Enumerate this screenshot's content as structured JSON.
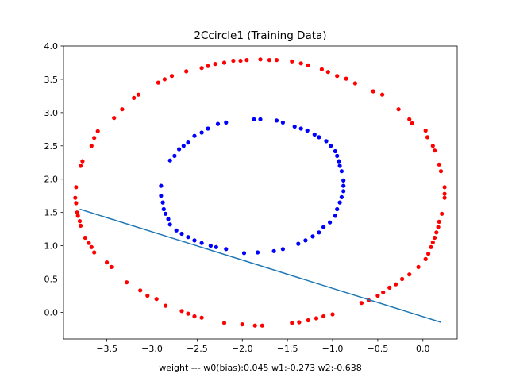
{
  "chart_data": {
    "type": "scatter",
    "title": "2Ccircle1 (Training Data)",
    "xlabel": "weight  ---  w0(bias):0.045   w1:-0.273   w2:-0.638",
    "ylabel": "",
    "xlim": [
      -3.98,
      0.38
    ],
    "ylim": [
      -0.4,
      4.0
    ],
    "xticks": [
      -3.5,
      -3.0,
      -2.5,
      -2.0,
      -1.5,
      -1.0,
      -0.5,
      0.0
    ],
    "xtick_labels": [
      "−3.5",
      "−3.0",
      "−2.5",
      "−2.0",
      "−1.5",
      "−1.0",
      "−0.5",
      "0.0"
    ],
    "yticks": [
      0.0,
      0.5,
      1.0,
      1.5,
      2.0,
      2.5,
      3.0,
      3.5,
      4.0
    ],
    "ytick_labels": [
      "0.0",
      "0.5",
      "1.0",
      "1.5",
      "2.0",
      "2.5",
      "3.0",
      "3.5",
      "4.0"
    ],
    "grid": false,
    "series": [
      {
        "color": "#ff0000",
        "marker": "circle",
        "points": [
          [
            -1.8,
            3.8
          ],
          [
            -1.7,
            3.79
          ],
          [
            -1.62,
            3.79
          ],
          [
            -1.95,
            3.79
          ],
          [
            -2.02,
            3.78
          ],
          [
            -2.1,
            3.78
          ],
          [
            -2.2,
            3.75
          ],
          [
            -2.3,
            3.73
          ],
          [
            -2.38,
            3.7
          ],
          [
            -2.45,
            3.67
          ],
          [
            -2.62,
            3.62
          ],
          [
            -2.78,
            3.55
          ],
          [
            -2.86,
            3.5
          ],
          [
            -2.93,
            3.45
          ],
          [
            -3.15,
            3.27
          ],
          [
            -3.2,
            3.22
          ],
          [
            -3.33,
            3.05
          ],
          [
            -3.42,
            2.92
          ],
          [
            -3.6,
            2.72
          ],
          [
            -3.64,
            2.62
          ],
          [
            -3.67,
            2.5
          ],
          [
            -3.77,
            2.27
          ],
          [
            -3.79,
            2.2
          ],
          [
            -3.84,
            1.88
          ],
          [
            -3.85,
            1.72
          ],
          [
            -3.84,
            1.64
          ],
          [
            -3.83,
            1.5
          ],
          [
            -3.82,
            1.45
          ],
          [
            -3.8,
            1.37
          ],
          [
            -3.79,
            1.3
          ],
          [
            -3.74,
            1.12
          ],
          [
            -3.7,
            1.04
          ],
          [
            -3.67,
            0.98
          ],
          [
            -3.64,
            0.9
          ],
          [
            -3.5,
            0.75
          ],
          [
            -3.45,
            0.68
          ],
          [
            -3.28,
            0.45
          ],
          [
            -3.13,
            0.33
          ],
          [
            -3.05,
            0.25
          ],
          [
            -2.95,
            0.2
          ],
          [
            -2.85,
            0.1
          ],
          [
            -2.67,
            0.02
          ],
          [
            -2.6,
            -0.02
          ],
          [
            -2.53,
            -0.06
          ],
          [
            -2.45,
            -0.08
          ],
          [
            -2.2,
            -0.16
          ],
          [
            -2.0,
            -0.18
          ],
          [
            -1.86,
            -0.2
          ],
          [
            -1.78,
            -0.2
          ],
          [
            -1.45,
            -0.16
          ],
          [
            -1.37,
            -0.15
          ],
          [
            -1.27,
            -0.12
          ],
          [
            -1.18,
            -0.09
          ],
          [
            -1.1,
            -0.06
          ],
          [
            -1.0,
            -0.03
          ],
          [
            -0.68,
            0.14
          ],
          [
            -0.6,
            0.18
          ],
          [
            -0.5,
            0.25
          ],
          [
            -0.44,
            0.3
          ],
          [
            -0.37,
            0.37
          ],
          [
            -0.3,
            0.42
          ],
          [
            -0.23,
            0.5
          ],
          [
            -0.15,
            0.57
          ],
          [
            -0.05,
            0.68
          ],
          [
            0.03,
            0.8
          ],
          [
            0.06,
            0.88
          ],
          [
            0.09,
            0.98
          ],
          [
            0.11,
            1.05
          ],
          [
            0.13,
            1.12
          ],
          [
            0.15,
            1.2
          ],
          [
            0.17,
            1.28
          ],
          [
            0.18,
            1.36
          ],
          [
            0.21,
            1.48
          ],
          [
            0.24,
            1.72
          ],
          [
            0.24,
            1.78
          ],
          [
            0.24,
            1.88
          ],
          [
            0.2,
            2.12
          ],
          [
            0.18,
            2.22
          ],
          [
            0.13,
            2.43
          ],
          [
            0.11,
            2.5
          ],
          [
            0.05,
            2.63
          ],
          [
            0.03,
            2.73
          ],
          [
            -0.12,
            2.84
          ],
          [
            -0.15,
            2.9
          ],
          [
            -0.27,
            3.05
          ],
          [
            -0.45,
            3.27
          ],
          [
            -0.55,
            3.32
          ],
          [
            -0.75,
            3.44
          ],
          [
            -0.85,
            3.51
          ],
          [
            -0.95,
            3.55
          ],
          [
            -1.05,
            3.61
          ],
          [
            -1.12,
            3.65
          ],
          [
            -1.27,
            3.71
          ],
          [
            -1.35,
            3.74
          ],
          [
            -1.45,
            3.77
          ]
        ]
      },
      {
        "color": "#0000ff",
        "marker": "circle",
        "points": [
          [
            -1.87,
            2.9
          ],
          [
            -1.8,
            2.9
          ],
          [
            -1.62,
            2.88
          ],
          [
            -1.55,
            2.85
          ],
          [
            -1.42,
            2.79
          ],
          [
            -1.35,
            2.76
          ],
          [
            -1.28,
            2.73
          ],
          [
            -1.2,
            2.67
          ],
          [
            -1.15,
            2.63
          ],
          [
            -1.07,
            2.57
          ],
          [
            -1.02,
            2.5
          ],
          [
            -0.97,
            2.42
          ],
          [
            -0.95,
            2.35
          ],
          [
            -0.93,
            2.27
          ],
          [
            -0.92,
            2.2
          ],
          [
            -0.9,
            2.12
          ],
          [
            -0.88,
            1.98
          ],
          [
            -0.88,
            1.9
          ],
          [
            -0.88,
            1.82
          ],
          [
            -0.9,
            1.73
          ],
          [
            -0.92,
            1.65
          ],
          [
            -0.95,
            1.55
          ],
          [
            -0.97,
            1.45
          ],
          [
            -1.03,
            1.35
          ],
          [
            -1.1,
            1.28
          ],
          [
            -1.15,
            1.2
          ],
          [
            -1.22,
            1.14
          ],
          [
            -1.3,
            1.08
          ],
          [
            -1.38,
            1.03
          ],
          [
            -1.55,
            0.95
          ],
          [
            -1.65,
            0.92
          ],
          [
            -1.83,
            0.9
          ],
          [
            -1.98,
            0.89
          ],
          [
            -2.18,
            0.95
          ],
          [
            -2.29,
            0.98
          ],
          [
            -2.35,
            1.0
          ],
          [
            -2.45,
            1.04
          ],
          [
            -2.53,
            1.08
          ],
          [
            -2.6,
            1.13
          ],
          [
            -2.67,
            1.18
          ],
          [
            -2.73,
            1.23
          ],
          [
            -2.8,
            1.32
          ],
          [
            -2.82,
            1.4
          ],
          [
            -2.85,
            1.48
          ],
          [
            -2.87,
            1.55
          ],
          [
            -2.88,
            1.65
          ],
          [
            -2.9,
            1.75
          ],
          [
            -2.9,
            1.9
          ],
          [
            -2.8,
            2.28
          ],
          [
            -2.75,
            2.35
          ],
          [
            -2.7,
            2.45
          ],
          [
            -2.65,
            2.5
          ],
          [
            -2.6,
            2.55
          ],
          [
            -2.53,
            2.65
          ],
          [
            -2.45,
            2.7
          ],
          [
            -2.38,
            2.76
          ],
          [
            -2.27,
            2.83
          ],
          [
            -2.18,
            2.85
          ]
        ]
      }
    ],
    "lines": [
      {
        "color": "#1f77b4",
        "points": [
          [
            -3.8,
            1.55
          ],
          [
            0.2,
            -0.15
          ]
        ]
      }
    ]
  }
}
